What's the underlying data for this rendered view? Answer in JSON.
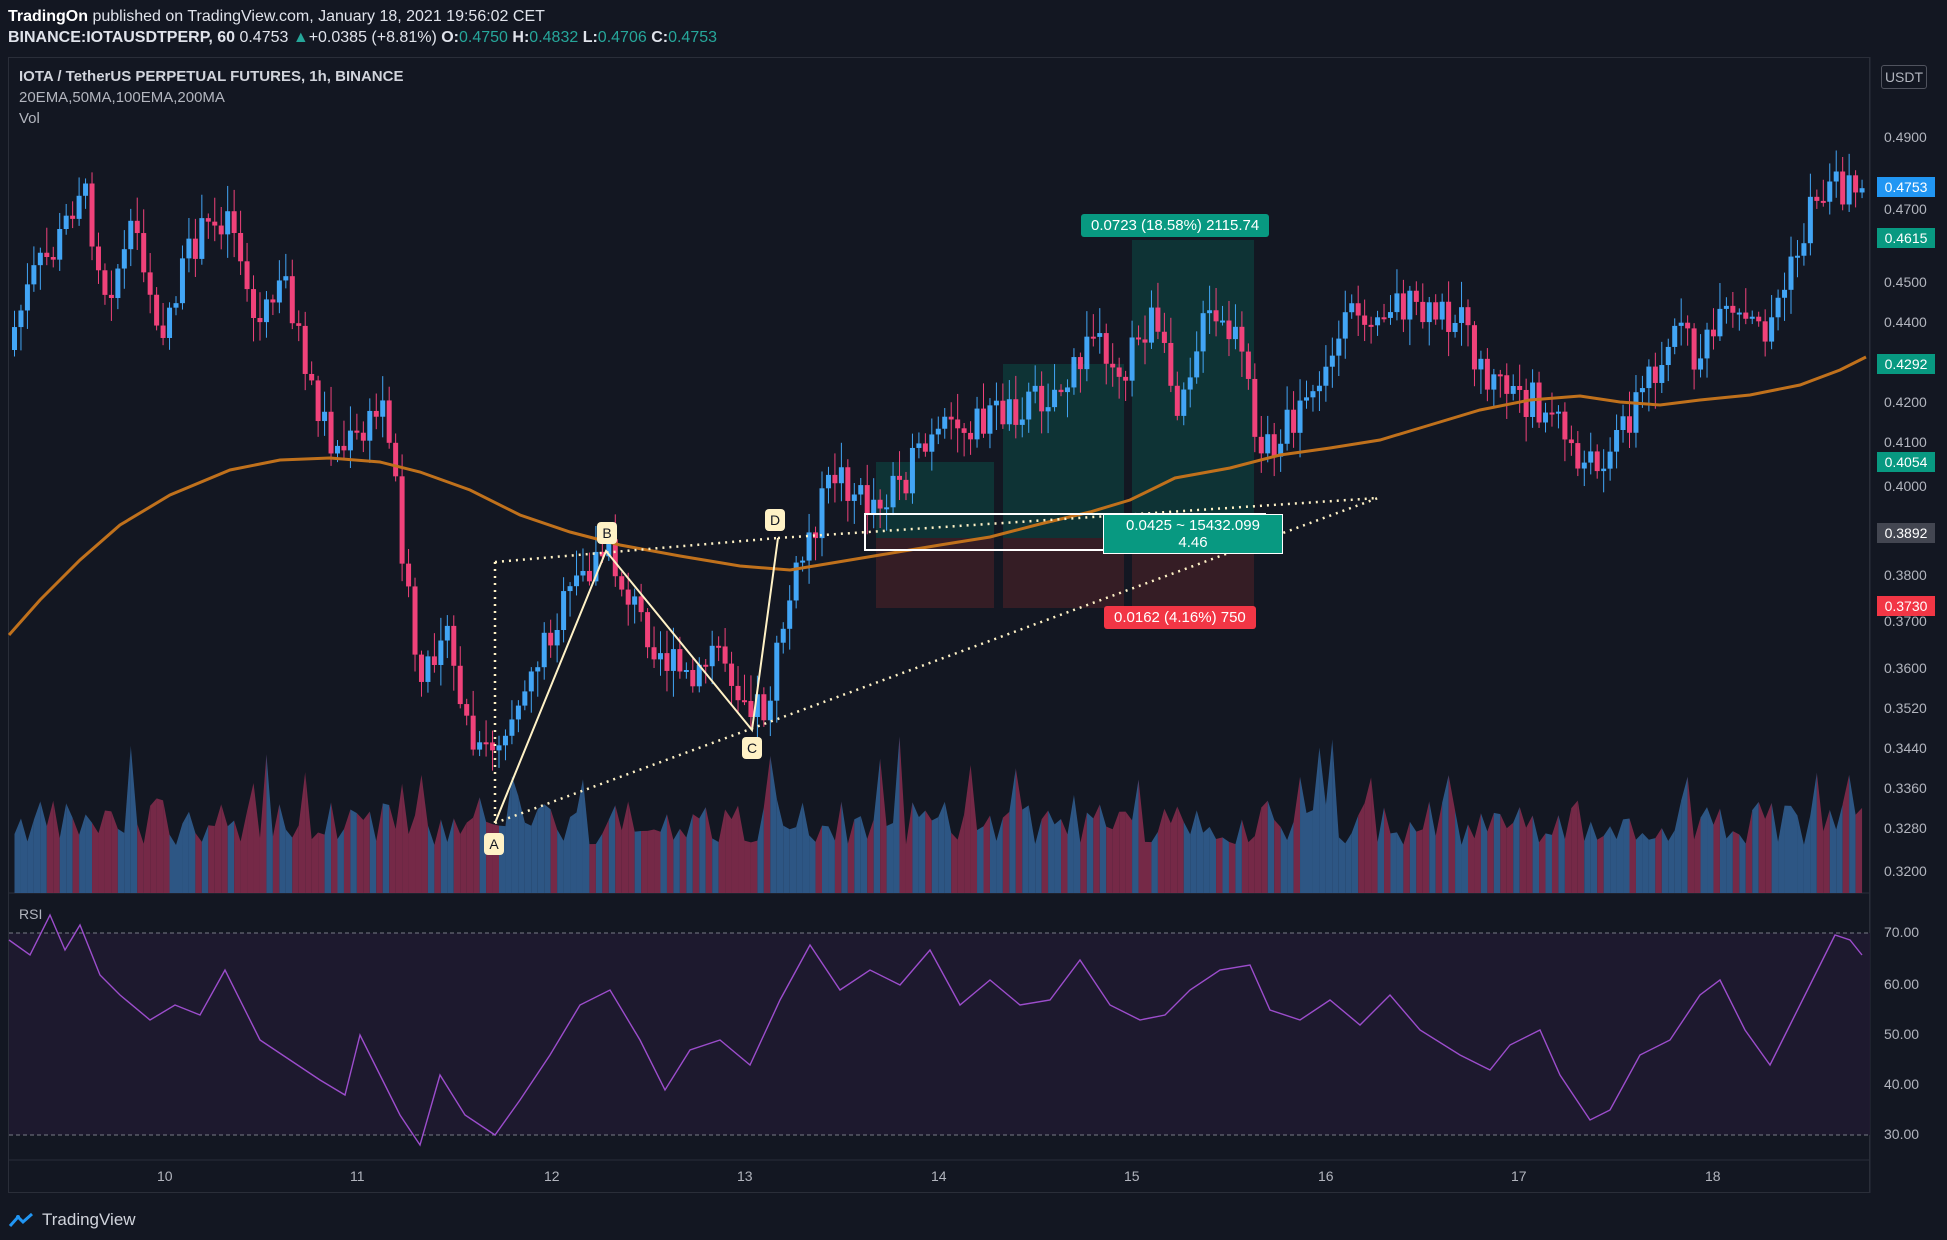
{
  "header": {
    "publisher": "TradingOn",
    "published_text": "published on TradingView.com, January 18, 2021 19:56:02 CET",
    "symbol_line": "BINANCE:IOTAUSDTPERP, 60",
    "last": "0.4753",
    "change": "+0.0385 (+8.81%)",
    "o_label": "O:",
    "o": "0.4750",
    "h_label": "H:",
    "h": "0.4832",
    "l_label": "L:",
    "l": "0.4706",
    "c_label": "C:",
    "c": "0.4753"
  },
  "legend": {
    "title": "IOTA / TetherUS PERPETUAL FUTURES, 1h, BINANCE",
    "indicators": "20EMA,50MA,100EMA,200MA",
    "volume": "Vol"
  },
  "currency": "USDT",
  "rsi": {
    "label": "RSI",
    "levels": [
      "70.00",
      "60.00",
      "50.00",
      "40.00",
      "30.00"
    ]
  },
  "price_axis": {
    "labels": [
      "0.4900",
      "0.4700",
      "0.4500",
      "0.4400",
      "0.4200",
      "0.4100",
      "0.4000",
      "0.3800",
      "0.3700",
      "0.3600",
      "0.3520",
      "0.3440",
      "0.3360",
      "0.3280",
      "0.3200"
    ],
    "badges": [
      {
        "value": "0.4753",
        "color": "#2196f3"
      },
      {
        "value": "0.4615",
        "color": "#089981"
      },
      {
        "value": "0.4292",
        "color": "#089981"
      },
      {
        "value": "0.4054",
        "color": "#089981"
      },
      {
        "value": "0.3892",
        "color": "#434651"
      },
      {
        "value": "0.3730",
        "color": "#f23645"
      }
    ]
  },
  "time_axis": {
    "labels": [
      "10",
      "11",
      "12",
      "13",
      "14",
      "15",
      "16",
      "17",
      "18"
    ]
  },
  "position_tool": {
    "target_label": "0.0723 (18.58%) 2115.74",
    "entry_label_1": "0.0425 ~ 15432.099",
    "entry_label_2": "4.46",
    "stop_label": "0.0162 (4.16%) 750"
  },
  "pattern_points": [
    "A",
    "B",
    "C",
    "D"
  ],
  "colors": {
    "bull": "#42a5f5",
    "bear": "#f0427a",
    "ema": "#c0711c",
    "rsi": "#9c4dcc",
    "bg": "#131722"
  },
  "footer": {
    "brand": "TradingView"
  }
}
